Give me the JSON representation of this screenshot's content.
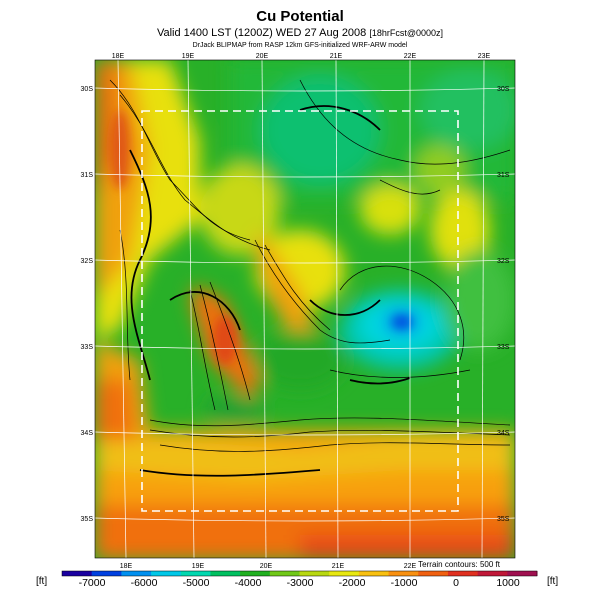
{
  "header": {
    "title": "Cu Potential",
    "subtitle_main": "Valid 1400 LST (1200Z) WED 27 Aug 2008",
    "subtitle_small": "[18hrFcst@0000z]",
    "credit": "DrJack BLIPMAP from RASP 12km GFS-initialized WRF-ARW model"
  },
  "map": {
    "lon_labels_top": [
      "18E",
      "19E",
      "20E",
      "21E",
      "22E",
      "23E"
    ],
    "lon_labels_bottom": [
      "18E",
      "19E",
      "20E",
      "21E",
      "22E"
    ],
    "lat_labels_left": [
      "30S",
      "31S",
      "32S",
      "33S",
      "34S",
      "35S"
    ],
    "lat_labels_right": [
      "30S",
      "31S",
      "32S",
      "33S",
      "34S",
      "35S"
    ],
    "terrain_note": "Terrain contours: 500 ft"
  },
  "colorbar": {
    "unit_left": "[ft]",
    "unit_right": "[ft]",
    "labels": [
      "-7000",
      "-6000",
      "-5000",
      "-4000",
      "-3000",
      "-2000",
      "-1000",
      "0",
      "1000"
    ],
    "colors": [
      "#1a00a0",
      "#0040e0",
      "#0090f0",
      "#00c8e8",
      "#00d8b0",
      "#00c060",
      "#20b020",
      "#70c818",
      "#b8d810",
      "#e8e810",
      "#f8c010",
      "#f89010",
      "#f06010",
      "#e03020",
      "#c01838",
      "#a01050"
    ]
  }
}
